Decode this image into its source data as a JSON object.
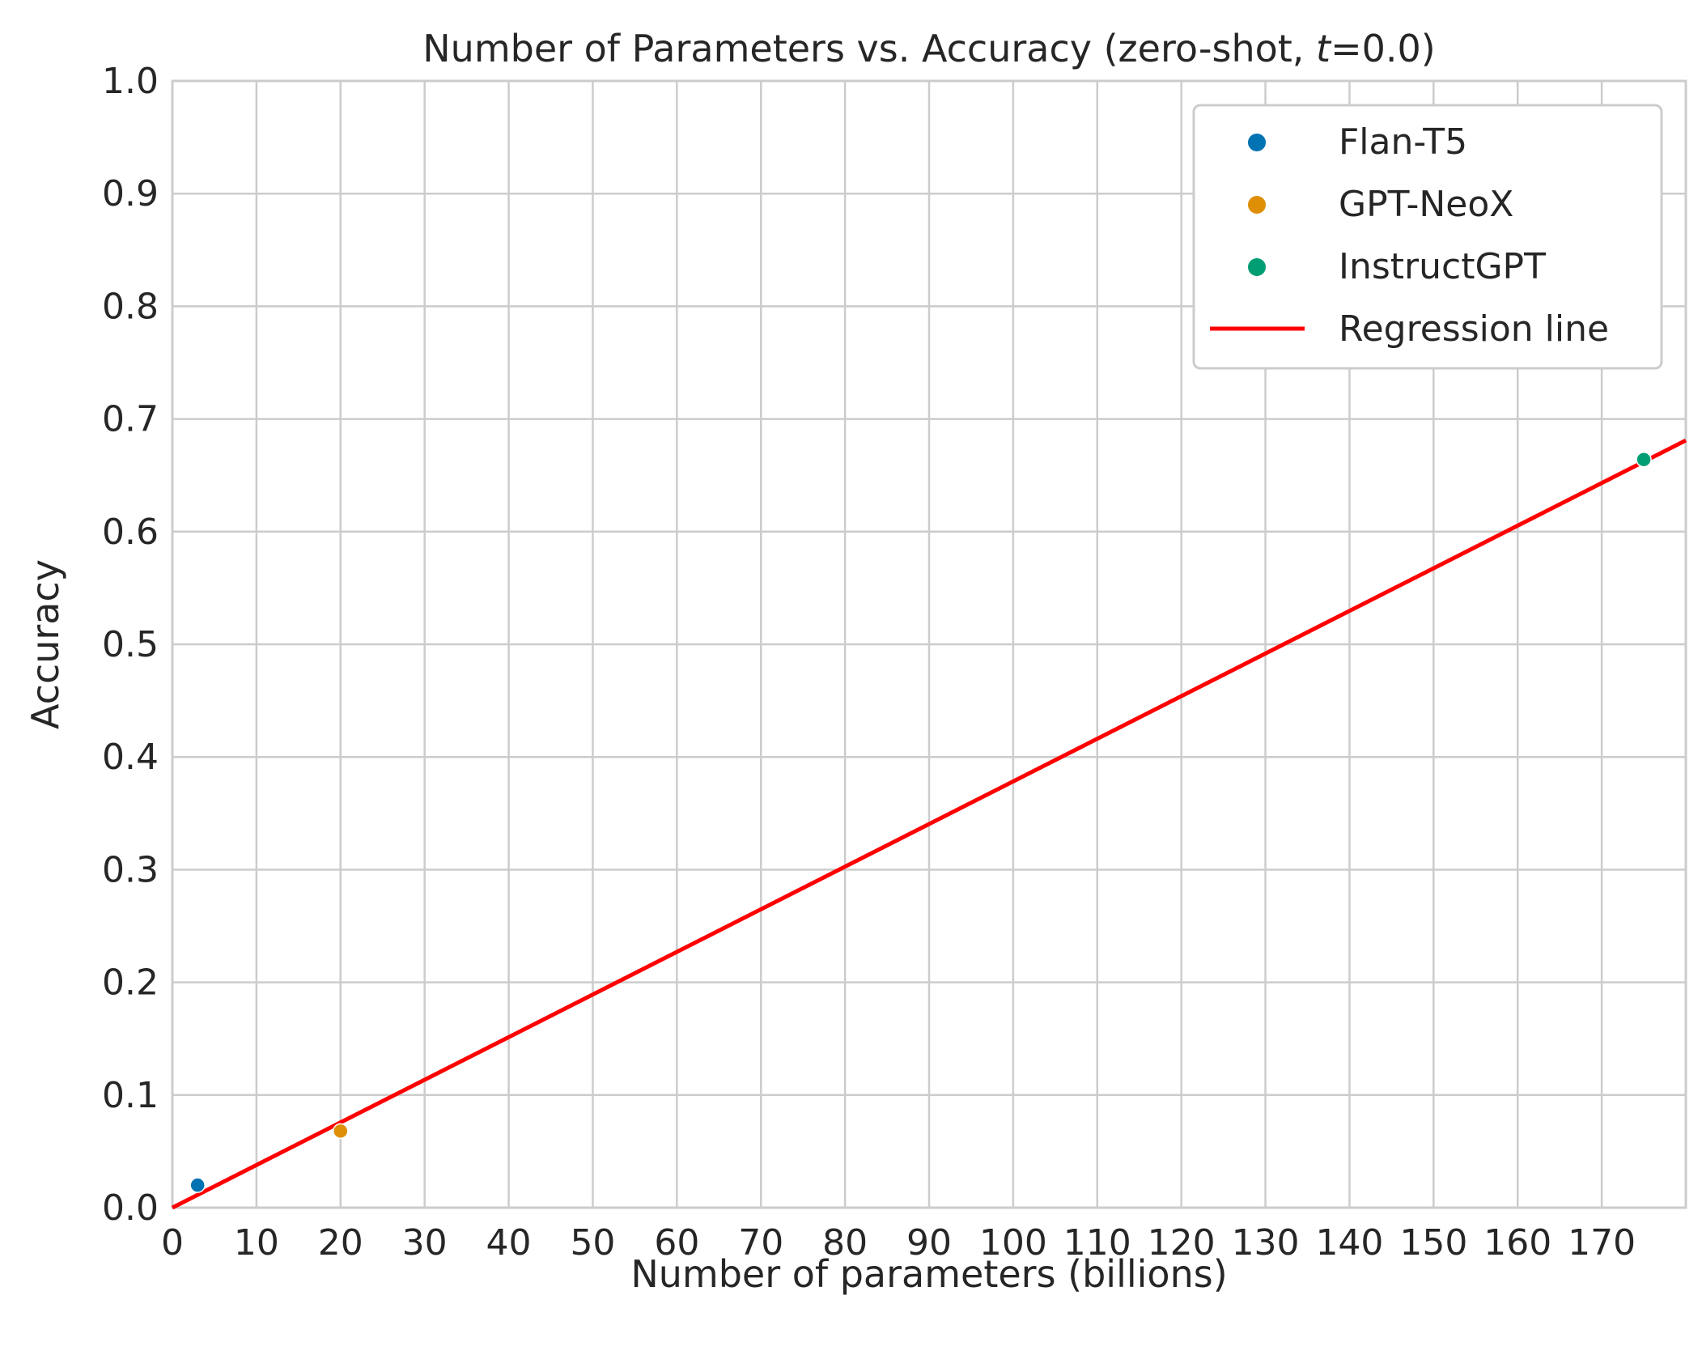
{
  "chart_data": {
    "type": "scatter",
    "title_prefix": "Number of Parameters vs. Accuracy (zero-shot, ",
    "title_var": "t",
    "title_suffix": "=0.0)",
    "xlabel": "Number of parameters (billions)",
    "ylabel": "Accuracy",
    "xlim": [
      0,
      180
    ],
    "ylim": [
      0,
      1.0
    ],
    "x_ticks": [
      0,
      10,
      20,
      30,
      40,
      50,
      60,
      70,
      80,
      90,
      100,
      110,
      120,
      130,
      140,
      150,
      160,
      170
    ],
    "y_ticks": [
      "0.0",
      "0.1",
      "0.2",
      "0.3",
      "0.4",
      "0.5",
      "0.6",
      "0.7",
      "0.8",
      "0.9",
      "1.0"
    ],
    "grid": true,
    "legend_position": "top-right",
    "series": [
      {
        "name": "Flan-T5",
        "color": "#0173b2",
        "points": [
          {
            "x": 3,
            "y": 0.02
          }
        ]
      },
      {
        "name": "GPT-NeoX",
        "color": "#de8f05",
        "points": [
          {
            "x": 20,
            "y": 0.068
          }
        ]
      },
      {
        "name": "InstructGPT",
        "color": "#029e73",
        "points": [
          {
            "x": 175,
            "y": 0.664
          }
        ]
      }
    ],
    "regression_line": {
      "name": "Regression line",
      "color": "#ff0000",
      "x": [
        0,
        180
      ],
      "y": [
        0.0,
        0.681
      ]
    }
  }
}
